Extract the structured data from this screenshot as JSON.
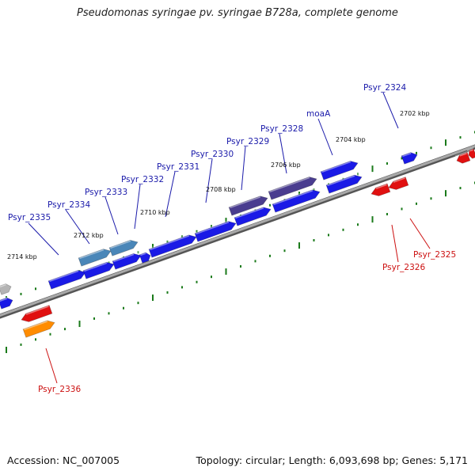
{
  "title": "Pseudomonas syringae pv. syringae B728a, complete genome",
  "footer": {
    "accession": "Accession: NC_007005",
    "summary": "Topology: circular; Length: 6,093,698 bp; Genes: 5,171"
  },
  "colors": {
    "forward_gene": "#1a1ae6",
    "reverse_gene": "#e01010",
    "backbone": "#8a8a8a",
    "tick": "#1a7a1a",
    "forward_label": "#1a1aaa",
    "reverse_label": "#cc1010",
    "highlight_purple": "#4a3d8f",
    "highlight_steel": "#4a86b8",
    "highlight_orange": "#ff8c00",
    "gray_gene": "#b4b4b4"
  },
  "kbp_labels": [
    "2702 kbp",
    "2704 kbp",
    "2706 kbp",
    "2708 kbp",
    "2710 kbp",
    "2712 kbp",
    "2714 kbp"
  ],
  "forward_labels": [
    "Psyr_2324",
    "moaA",
    "Psyr_2328",
    "Psyr_2329",
    "Psyr_2330",
    "Psyr_2331",
    "Psyr_2332",
    "Psyr_2333",
    "Psyr_2334",
    "Psyr_2335"
  ],
  "reverse_labels": [
    "Psyr_2325",
    "Psyr_2326",
    "Psyr_2336"
  ]
}
